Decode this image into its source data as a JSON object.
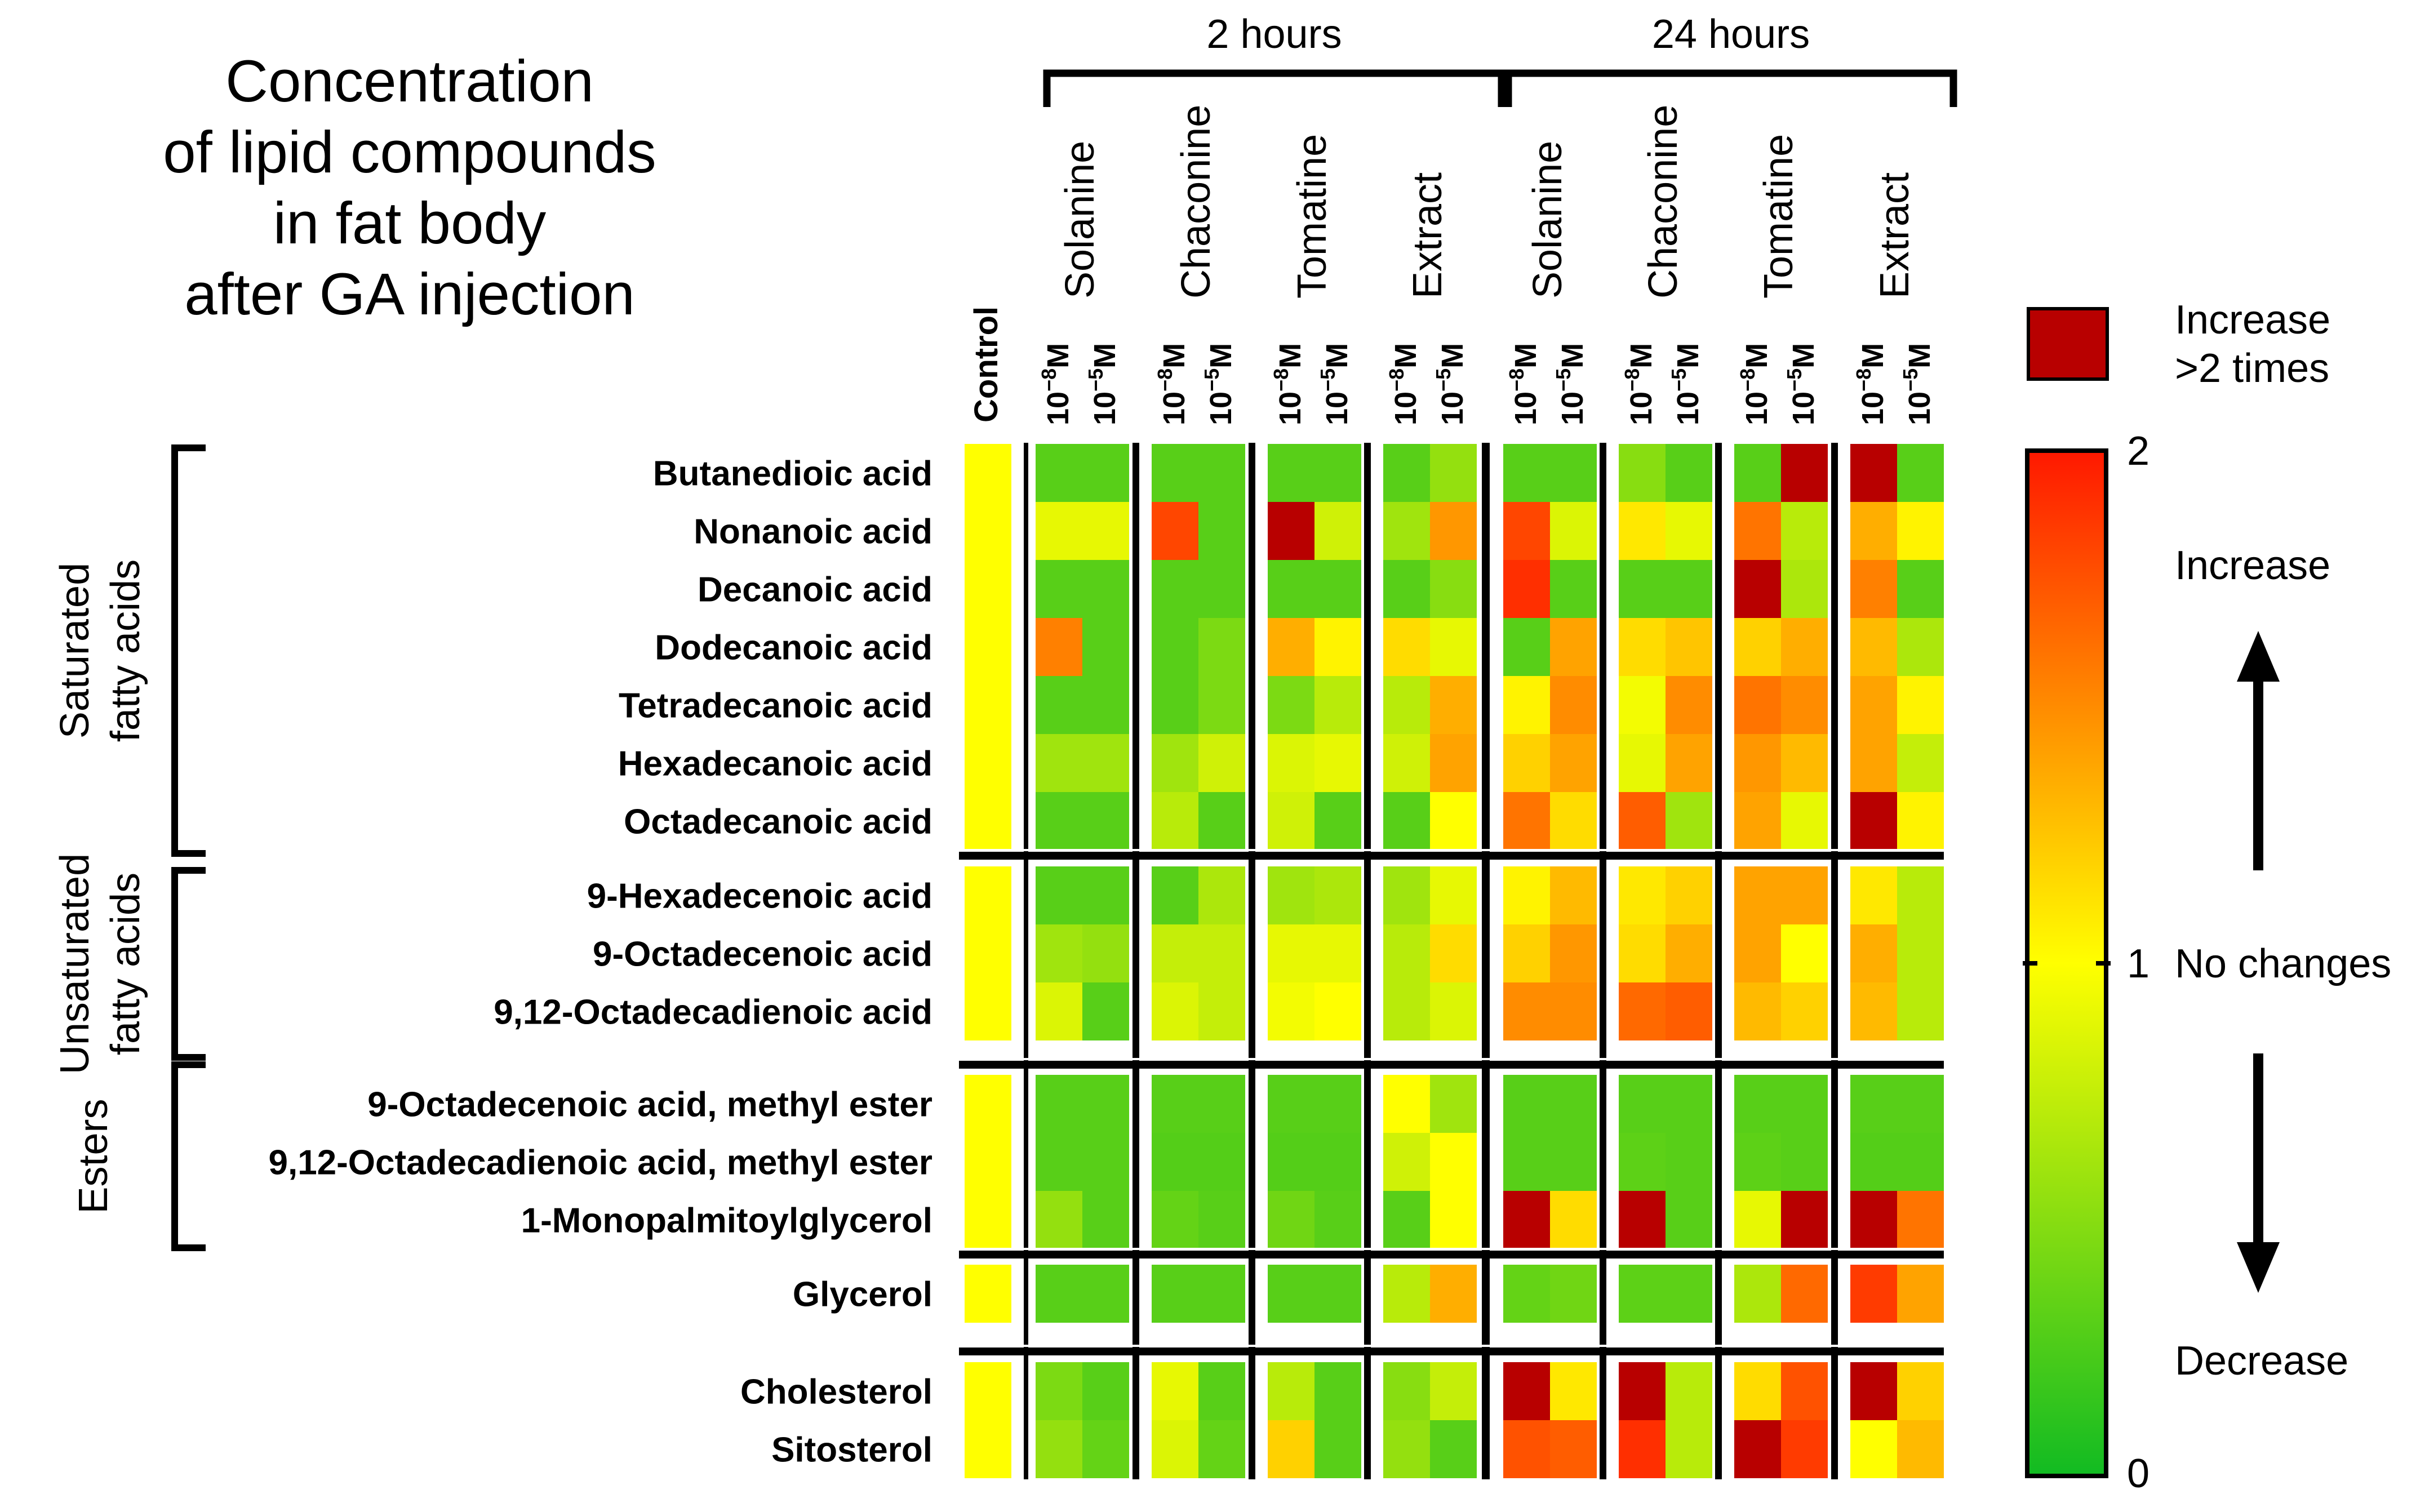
{
  "title_lines": [
    "Concentration",
    "of lipid compounds",
    "in fat body",
    "after GA injection"
  ],
  "chart_data": {
    "type": "heatmap",
    "title": "Concentration of lipid compounds in fat body after GA injection",
    "scale": {
      "min": 0,
      "mid": 1,
      "max": 2,
      "colors": [
        "#11bb22",
        "#ffff00",
        "#ff1800"
      ],
      "over_color": "#b80000"
    },
    "time_groups": [
      {
        "label": "2 hours",
        "compounds": [
          "Solanine",
          "Chaconine",
          "Tomatine",
          "Extract"
        ]
      },
      {
        "label": "24 hours",
        "compounds": [
          "Solanine",
          "Chaconine",
          "Tomatine",
          "Extract"
        ]
      }
    ],
    "control_label": "Control",
    "dose_labels": [
      "10",
      "10"
    ],
    "dose_exponents": [
      "−8",
      "−5"
    ],
    "dose_unit": "M",
    "row_groups": [
      {
        "label": [
          "Saturated",
          "fatty acids"
        ],
        "bracket": true,
        "rows": [
          "Butanedioic acid",
          "Nonanoic acid",
          "Decanoic acid",
          "Dodecanoic acid",
          "Tetradecanoic acid",
          "Hexadecanoic acid",
          "Octadecanoic acid"
        ]
      },
      {
        "label": [
          "Unsaturated",
          "fatty acids"
        ],
        "bracket": true,
        "rows": [
          "9-Hexadecenoic acid",
          "9-Octadecenoic acid",
          "9,12-Octadecadienoic acid"
        ]
      },
      {
        "label": [
          "Esters"
        ],
        "bracket": true,
        "rows": [
          "9-Octadecenoic acid, methyl ester",
          "9,12-Octadecadienoic acid, methyl ester",
          "1-Monopalmitoylglycerol"
        ]
      },
      {
        "label": [],
        "bracket": false,
        "rows": [
          "Glycerol"
        ]
      },
      {
        "label": [],
        "bracket": false,
        "rows": [
          "Cholesterol",
          "Sitosterol"
        ]
      }
    ],
    "values": [
      [
        1,
        0.3,
        0.3,
        0.3,
        0.3,
        0.3,
        0.3,
        0.3,
        0.55,
        0.3,
        0.3,
        0.5,
        0.3,
        0.3,
        3,
        3,
        0.3
      ],
      [
        1,
        0.9,
        0.9,
        1.8,
        0.3,
        3,
        0.8,
        0.6,
        1.45,
        1.8,
        0.85,
        1.1,
        0.9,
        1.6,
        0.7,
        1.35,
        1.05
      ],
      [
        1,
        0.3,
        0.3,
        0.3,
        0.3,
        0.3,
        0.3,
        0.3,
        0.5,
        1.9,
        0.3,
        0.3,
        0.3,
        3,
        0.65,
        1.55,
        0.3
      ],
      [
        1,
        1.55,
        0.3,
        0.3,
        0.45,
        1.35,
        1.05,
        1.15,
        0.9,
        0.3,
        1.4,
        1.15,
        1.25,
        1.2,
        1.35,
        1.3,
        0.65
      ],
      [
        1,
        0.3,
        0.3,
        0.3,
        0.45,
        0.45,
        0.7,
        0.7,
        1.35,
        1.05,
        1.5,
        0.95,
        1.5,
        1.6,
        1.5,
        1.4,
        1.05
      ],
      [
        1,
        0.6,
        0.6,
        0.6,
        0.8,
        0.85,
        0.9,
        0.8,
        1.4,
        1.2,
        1.4,
        0.9,
        1.4,
        1.45,
        1.3,
        1.4,
        0.75
      ],
      [
        1,
        0.3,
        0.3,
        0.7,
        0.3,
        0.8,
        0.3,
        0.3,
        1.0,
        1.6,
        1.15,
        1.7,
        0.6,
        1.4,
        0.9,
        3,
        1.05
      ],
      [
        1,
        0.3,
        0.3,
        0.3,
        0.65,
        0.6,
        0.65,
        0.6,
        0.9,
        1.05,
        1.3,
        1.1,
        1.2,
        1.4,
        1.4,
        1.1,
        0.7
      ],
      [
        1,
        0.6,
        0.55,
        0.75,
        0.75,
        0.9,
        0.9,
        0.7,
        1.15,
        1.2,
        1.45,
        1.15,
        1.35,
        1.4,
        1.0,
        1.35,
        0.7
      ],
      [
        1,
        0.85,
        0.3,
        0.85,
        0.75,
        0.95,
        1.0,
        0.7,
        0.85,
        1.5,
        1.5,
        1.65,
        1.7,
        1.3,
        1.2,
        1.3,
        0.7
      ],
      [
        1,
        0.3,
        0.3,
        0.3,
        0.3,
        0.3,
        0.3,
        1.0,
        0.6,
        0.3,
        0.3,
        0.3,
        0.3,
        0.3,
        0.3,
        0.3,
        0.3
      ],
      [
        1,
        0.3,
        0.3,
        0.28,
        0.28,
        0.28,
        0.28,
        0.8,
        1.0,
        0.3,
        0.3,
        0.32,
        0.3,
        0.32,
        0.3,
        0.28,
        0.28
      ],
      [
        1,
        0.55,
        0.3,
        0.35,
        0.3,
        0.4,
        0.3,
        0.3,
        1.0,
        3,
        1.15,
        3,
        0.3,
        0.9,
        3,
        3,
        1.6
      ],
      [
        1,
        0.3,
        0.3,
        0.3,
        0.3,
        0.3,
        0.3,
        0.7,
        1.35,
        0.35,
        0.4,
        0.32,
        0.32,
        0.65,
        1.65,
        1.85,
        1.4
      ],
      [
        1,
        0.45,
        0.3,
        0.9,
        0.3,
        0.7,
        0.3,
        0.5,
        0.75,
        3,
        1.1,
        3,
        0.7,
        1.15,
        1.75,
        3,
        1.2
      ],
      [
        1,
        0.55,
        0.35,
        0.85,
        0.35,
        1.2,
        0.3,
        0.55,
        0.3,
        1.75,
        1.7,
        1.9,
        0.7,
        3,
        1.85,
        1.0,
        1.3
      ]
    ]
  },
  "legend": {
    "over_label": [
      "Increase",
      ">2 times"
    ],
    "increase_label": "Increase",
    "no_change_label": "No changes",
    "decrease_label": "Decrease",
    "tick_max": "2",
    "tick_mid": "1",
    "tick_min": "0"
  }
}
